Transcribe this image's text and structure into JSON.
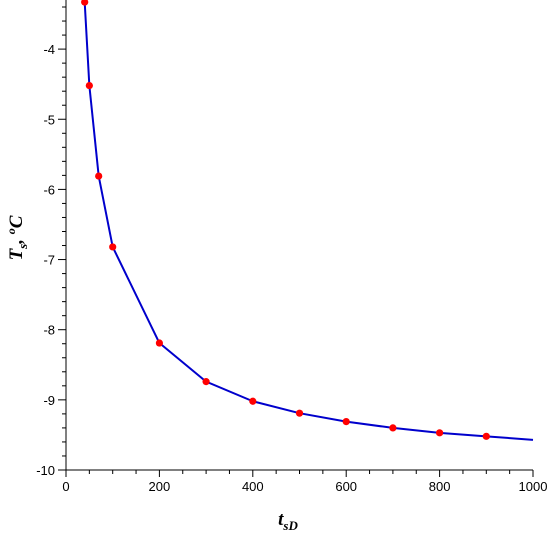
{
  "chart_data": {
    "type": "line",
    "xlim": [
      0,
      1000
    ],
    "ylim": [
      -10,
      -3.3
    ],
    "x_ticks": [
      0,
      200,
      400,
      600,
      800,
      1000
    ],
    "y_ticks": [
      -10,
      -9,
      -8,
      -7,
      -6,
      -5,
      -4
    ],
    "x_tick_labels": [
      "0",
      "200",
      "400",
      "600",
      "800",
      "1000"
    ],
    "y_tick_labels": [
      "-10",
      "-9",
      "-8",
      "-7",
      "-6",
      "-5",
      "-4"
    ],
    "xlabel": {
      "main": "t",
      "sub": "sD"
    },
    "ylabel": {
      "main": "T",
      "sub": "s",
      "rest": ", ",
      "sup": "o",
      "unit": "C"
    },
    "grid": false,
    "series": [
      {
        "kind": "line",
        "color": "#0000cc",
        "x": [
          40,
          50,
          70,
          100,
          200,
          300,
          400,
          500,
          600,
          700,
          800,
          900,
          1000
        ],
        "y": [
          -3.33,
          -4.52,
          -5.81,
          -6.82,
          -8.19,
          -8.74,
          -9.02,
          -9.19,
          -9.31,
          -9.4,
          -9.47,
          -9.52,
          -9.57
        ]
      },
      {
        "kind": "points",
        "color": "#ff0000",
        "x": [
          40,
          50,
          70,
          100,
          200,
          300,
          400,
          500,
          600,
          700,
          800,
          900
        ],
        "y": [
          -3.33,
          -4.52,
          -5.81,
          -6.82,
          -8.19,
          -8.74,
          -9.02,
          -9.19,
          -9.31,
          -9.4,
          -9.47,
          -9.52
        ]
      }
    ]
  }
}
